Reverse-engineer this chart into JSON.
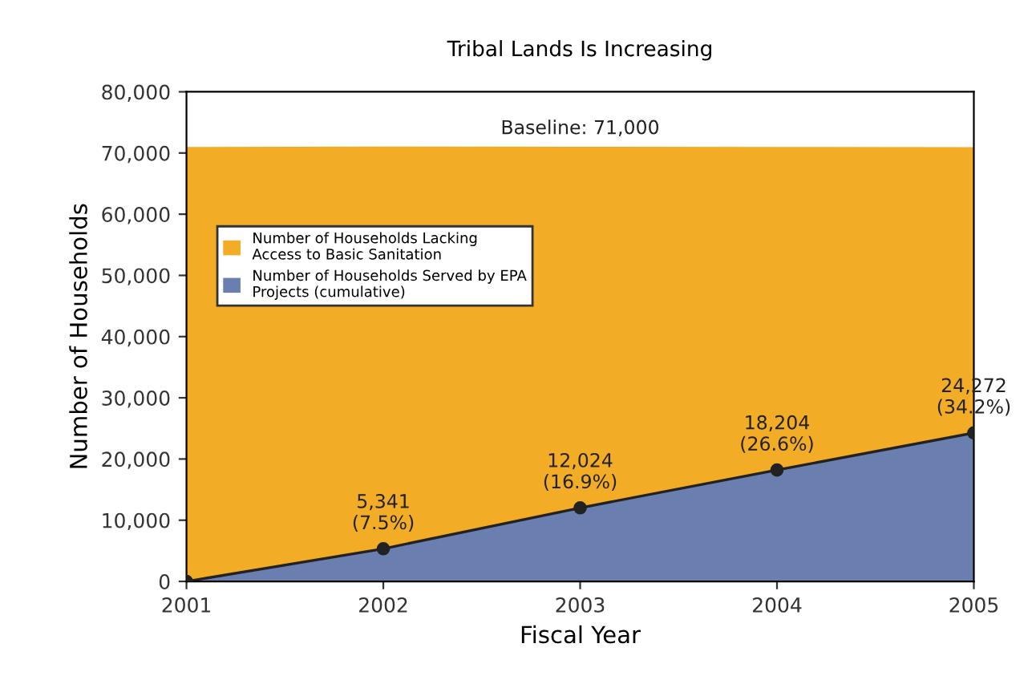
{
  "chart_data": {
    "type": "area",
    "title": "Tribal Lands Is Increasing",
    "xlabel": "Fiscal Year",
    "ylabel": "Number of Households",
    "x": [
      2001,
      2002,
      2003,
      2004,
      2005
    ],
    "stacked": true,
    "series": [
      {
        "name": "Number of Households Served by EPA Projects (cumulative)",
        "color": "#6a7fb0",
        "values": [
          0,
          5341,
          12024,
          18204,
          24272
        ],
        "marker": "circle",
        "value_labels": [
          null,
          "5,341\n(7.5%)",
          "12,024\n(16.9%)",
          "18,204\n(26.6%)",
          "24,272\n(34.2%)"
        ]
      },
      {
        "name": "Number of Households Lacking Access to Basic Sanitation",
        "color": "#f3ac25",
        "values": [
          71000,
          65700,
          59000,
          52800,
          46700
        ]
      }
    ],
    "xlim": [
      2001,
      2005
    ],
    "xticks": [
      2001,
      2002,
      2003,
      2004,
      2005
    ],
    "ylim": [
      0,
      80000
    ],
    "yticks": [
      0,
      {
        "value": 10000,
        "label": "10,000"
      },
      {
        "value": 20000,
        "label": "20,000"
      },
      {
        "value": 30000,
        "label": "30,000"
      },
      {
        "value": 40000,
        "label": "40,000"
      },
      {
        "value": 50000,
        "label": "50,000"
      },
      {
        "value": 60000,
        "label": "60,000"
      },
      {
        "value": 70000,
        "label": "70,000"
      },
      {
        "value": 80000,
        "label": "80,000"
      }
    ],
    "annotations": [
      {
        "text": "Baseline: 71,000",
        "x": 2003,
        "y": 71000
      }
    ],
    "legend": "upper left",
    "grid": false
  }
}
